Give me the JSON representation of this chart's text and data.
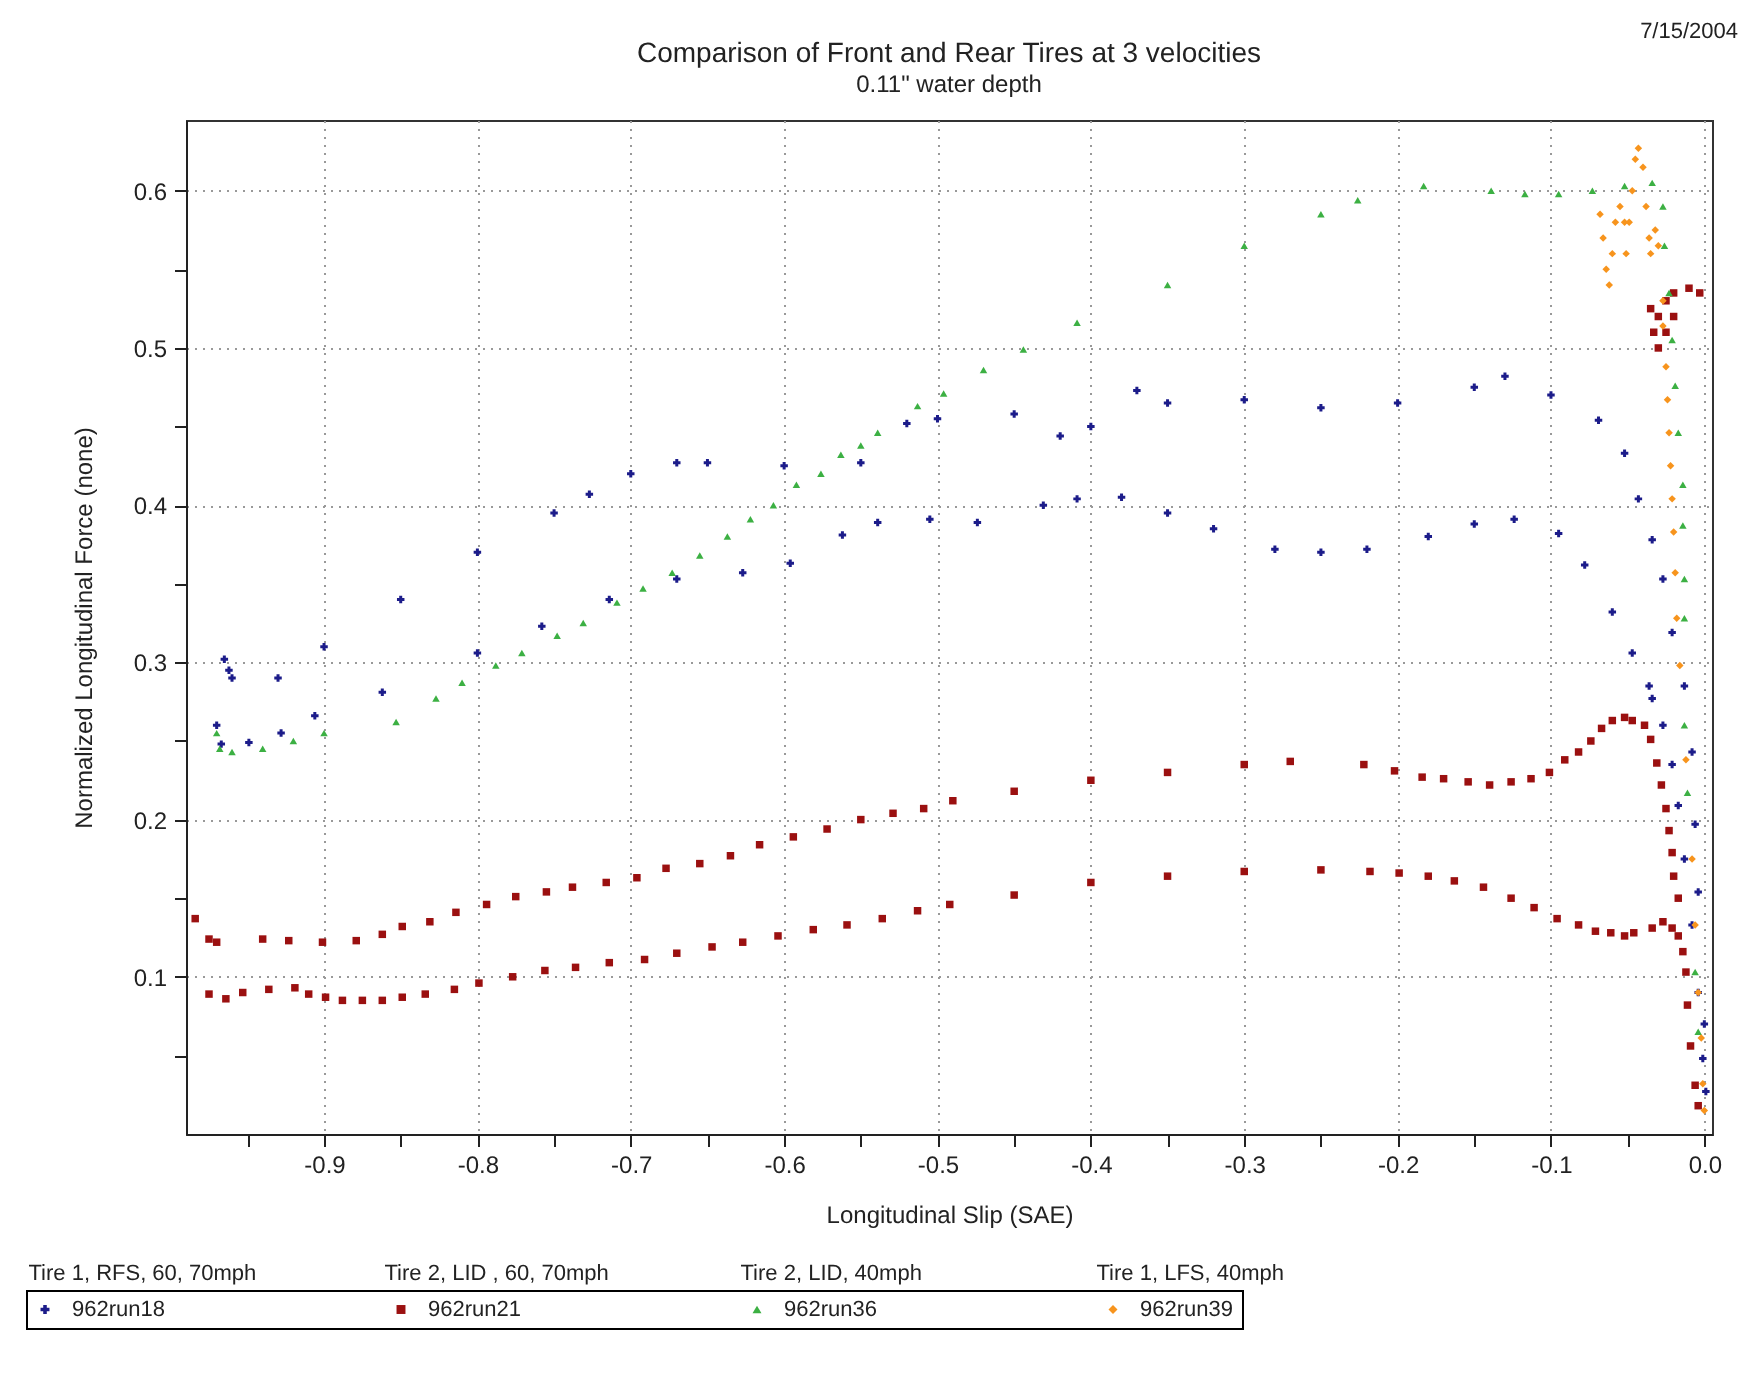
{
  "chart_data": {
    "type": "scatter",
    "title": "Comparison of Front and Rear Tires at 3 velocities",
    "subtitle": "0.11\" water depth",
    "xlabel": "Longitudinal Slip (SAE)",
    "ylabel": "Normalized Longitudinal Force (none)",
    "annotations": [
      "7/15/2004",
      "Tire 1, RFS, 60, 70mph",
      "Tire 2, LID , 60, 70mph",
      "Tire 2, LID, 40mph",
      "Tire 1, LFS, 40mph"
    ],
    "xlim": [
      -0.99,
      0.005
    ],
    "ylim": [
      0,
      0.645
    ],
    "xticks": [
      {
        "value": -0.95,
        "label": null
      },
      -0.9,
      {
        "value": -0.85,
        "label": null
      },
      -0.8,
      {
        "value": -0.75,
        "label": null
      },
      -0.7,
      {
        "value": -0.65,
        "label": null
      },
      -0.6,
      {
        "value": -0.55,
        "label": null
      },
      -0.5,
      {
        "value": -0.45,
        "label": null
      },
      -0.4,
      {
        "value": -0.35,
        "label": null
      },
      -0.3,
      {
        "value": -0.25,
        "label": null
      },
      -0.2,
      {
        "value": -0.15,
        "label": null
      },
      -0.1,
      {
        "value": -0.05,
        "label": null
      },
      {
        "value": 0,
        "label": "0.0"
      }
    ],
    "yticks": [
      {
        "value": 0.05,
        "label": null
      },
      0.1,
      {
        "value": 0.15,
        "label": null
      },
      0.2,
      {
        "value": 0.25,
        "label": null
      },
      0.3,
      {
        "value": 0.35,
        "label": null
      },
      0.4,
      {
        "value": 0.45,
        "label": null
      },
      0.5,
      {
        "value": 0.55,
        "label": null
      },
      0.6
    ],
    "grid": true,
    "legend": "bottom",
    "series": [
      {
        "name": "962run18",
        "color": "#1c1c8a",
        "marker": "cross",
        "x": [
          -0.965,
          -0.962,
          -0.96,
          -0.93,
          -0.9,
          -0.85,
          -0.8,
          -0.75,
          -0.727,
          -0.7,
          -0.67,
          -0.65,
          -0.6,
          -0.55,
          -0.52,
          -0.5,
          -0.45,
          -0.42,
          -0.4,
          -0.37,
          -0.35,
          -0.3,
          -0.25,
          -0.2,
          -0.15,
          -0.13,
          -0.1,
          -0.069,
          -0.052,
          -0.043,
          -0.034,
          -0.027,
          -0.021,
          -0.013,
          -0.008,
          -0.006,
          -0.004,
          0,
          0.001,
          -0.97,
          -0.967,
          -0.949,
          -0.928,
          -0.906,
          -0.862,
          -0.8,
          -0.758,
          -0.714,
          -0.67,
          -0.627,
          -0.596,
          -0.562,
          -0.539,
          -0.505,
          -0.474,
          -0.431,
          -0.409,
          -0.38,
          -0.35,
          -0.32,
          -0.28,
          -0.25,
          -0.22,
          -0.18,
          -0.15,
          -0.124,
          -0.095,
          -0.078,
          -0.06,
          -0.047,
          -0.036,
          -0.034,
          -0.027,
          -0.021,
          -0.017,
          -0.013,
          -0.008,
          -0.004,
          -0.001
        ],
        "values": [
          0.302,
          0.295,
          0.29,
          0.29,
          0.31,
          0.34,
          0.37,
          0.395,
          0.407,
          0.42,
          0.427,
          0.427,
          0.425,
          0.427,
          0.452,
          0.455,
          0.458,
          0.444,
          0.45,
          0.473,
          0.465,
          0.467,
          0.462,
          0.465,
          0.475,
          0.482,
          0.47,
          0.454,
          0.433,
          0.404,
          0.378,
          0.353,
          0.319,
          0.285,
          0.243,
          0.197,
          0.154,
          0.07,
          0.027,
          0.26,
          0.248,
          0.249,
          0.255,
          0.266,
          0.281,
          0.306,
          0.323,
          0.34,
          0.353,
          0.357,
          0.363,
          0.381,
          0.389,
          0.391,
          0.389,
          0.4,
          0.404,
          0.405,
          0.395,
          0.385,
          0.372,
          0.37,
          0.372,
          0.38,
          0.388,
          0.391,
          0.382,
          0.362,
          0.332,
          0.306,
          0.285,
          0.277,
          0.26,
          0.235,
          0.209,
          0.175,
          0.133,
          0.09,
          0.048
        ]
      },
      {
        "name": "962run21",
        "color": "#9b1010",
        "marker": "square",
        "x": [
          -0.984,
          -0.975,
          -0.97,
          -0.94,
          -0.923,
          -0.901,
          -0.879,
          -0.862,
          -0.849,
          -0.831,
          -0.814,
          -0.794,
          -0.775,
          -0.755,
          -0.738,
          -0.716,
          -0.696,
          -0.677,
          -0.655,
          -0.635,
          -0.616,
          -0.594,
          -0.572,
          -0.55,
          -0.529,
          -0.509,
          -0.49,
          -0.45,
          -0.4,
          -0.35,
          -0.3,
          -0.27,
          -0.222,
          -0.202,
          -0.184,
          -0.17,
          -0.154,
          -0.14,
          -0.126,
          -0.113,
          -0.101,
          -0.091,
          -0.082,
          -0.074,
          -0.067,
          -0.06,
          -0.052,
          -0.047,
          -0.039,
          -0.035,
          -0.031,
          -0.028,
          -0.025,
          -0.023,
          -0.021,
          -0.02,
          -0.017,
          -0.975,
          -0.964,
          -0.953,
          -0.936,
          -0.919,
          -0.91,
          -0.899,
          -0.888,
          -0.875,
          -0.862,
          -0.849,
          -0.834,
          -0.815,
          -0.799,
          -0.777,
          -0.756,
          -0.736,
          -0.714,
          -0.691,
          -0.67,
          -0.647,
          -0.627,
          -0.604,
          -0.581,
          -0.559,
          -0.536,
          -0.513,
          -0.492,
          -0.45,
          -0.4,
          -0.35,
          -0.3,
          -0.25,
          -0.218,
          -0.199,
          -0.18,
          -0.163,
          -0.144,
          -0.126,
          -0.111,
          -0.096,
          -0.082,
          -0.071,
          -0.061,
          -0.052,
          -0.046,
          -0.034,
          -0.027,
          -0.021,
          -0.017,
          -0.014,
          -0.012,
          -0.011,
          -0.009,
          -0.006,
          -0.004,
          -0.035,
          -0.033,
          -0.03,
          -0.025,
          -0.02,
          -0.025,
          -0.02,
          -0.01,
          -0.003,
          -0.03
        ],
        "values": [
          0.137,
          0.124,
          0.122,
          0.124,
          0.123,
          0.122,
          0.123,
          0.127,
          0.132,
          0.135,
          0.141,
          0.146,
          0.151,
          0.154,
          0.157,
          0.16,
          0.163,
          0.169,
          0.172,
          0.177,
          0.184,
          0.189,
          0.194,
          0.2,
          0.204,
          0.207,
          0.212,
          0.218,
          0.225,
          0.23,
          0.235,
          0.237,
          0.235,
          0.231,
          0.227,
          0.226,
          0.224,
          0.222,
          0.224,
          0.226,
          0.23,
          0.238,
          0.243,
          0.25,
          0.258,
          0.263,
          0.265,
          0.263,
          0.26,
          0.251,
          0.236,
          0.222,
          0.207,
          0.193,
          0.179,
          0.164,
          0.15,
          0.089,
          0.086,
          0.09,
          0.092,
          0.093,
          0.089,
          0.087,
          0.085,
          0.085,
          0.085,
          0.087,
          0.089,
          0.092,
          0.096,
          0.1,
          0.104,
          0.106,
          0.109,
          0.111,
          0.115,
          0.119,
          0.122,
          0.126,
          0.13,
          0.133,
          0.137,
          0.142,
          0.146,
          0.152,
          0.16,
          0.164,
          0.167,
          0.168,
          0.167,
          0.166,
          0.164,
          0.161,
          0.157,
          0.15,
          0.144,
          0.137,
          0.133,
          0.129,
          0.128,
          0.126,
          0.128,
          0.131,
          0.135,
          0.131,
          0.126,
          0.116,
          0.103,
          0.082,
          0.056,
          0.031,
          0.018,
          0.525,
          0.51,
          0.5,
          0.51,
          0.52,
          0.53,
          0.535,
          0.538,
          0.535,
          0.52
        ]
      },
      {
        "name": "962run36",
        "color": "#3cb043",
        "marker": "triangle",
        "x": [
          -0.97,
          -0.968,
          -0.96,
          -0.94,
          -0.92,
          -0.9,
          -0.853,
          -0.827,
          -0.81,
          -0.788,
          -0.771,
          -0.748,
          -0.731,
          -0.709,
          -0.692,
          -0.673,
          -0.655,
          -0.637,
          -0.622,
          -0.607,
          -0.592,
          -0.576,
          -0.563,
          -0.55,
          -0.539,
          -0.513,
          -0.496,
          -0.47,
          -0.444,
          -0.409,
          -0.35,
          -0.3,
          -0.25,
          -0.226,
          -0.183,
          -0.139,
          -0.117,
          -0.095,
          -0.073,
          -0.052,
          -0.034,
          -0.027,
          -0.026,
          -0.023,
          -0.021,
          -0.019,
          -0.017,
          -0.014,
          -0.014,
          -0.013,
          -0.013,
          -0.013,
          -0.011,
          -0.006,
          -0.004
        ],
        "values": [
          0.255,
          0.245,
          0.243,
          0.245,
          0.25,
          0.255,
          0.262,
          0.277,
          0.287,
          0.298,
          0.306,
          0.317,
          0.325,
          0.338,
          0.347,
          0.357,
          0.368,
          0.38,
          0.391,
          0.4,
          0.413,
          0.42,
          0.432,
          0.438,
          0.446,
          0.463,
          0.471,
          0.486,
          0.499,
          0.516,
          0.54,
          0.565,
          0.585,
          0.594,
          0.603,
          0.6,
          0.598,
          0.598,
          0.6,
          0.603,
          0.605,
          0.59,
          0.565,
          0.535,
          0.505,
          0.476,
          0.446,
          0.413,
          0.387,
          0.353,
          0.328,
          0.26,
          0.217,
          0.103,
          0.065
        ]
      },
      {
        "name": "962run39",
        "color": "#f7941d",
        "marker": "diamond",
        "x": [
          -0.068,
          -0.066,
          -0.064,
          -0.062,
          -0.06,
          -0.058,
          -0.055,
          -0.052,
          -0.051,
          -0.049,
          -0.047,
          -0.045,
          -0.043,
          -0.04,
          -0.038,
          -0.036,
          -0.035,
          -0.032,
          -0.03,
          -0.027,
          -0.027,
          -0.025,
          -0.024,
          -0.023,
          -0.022,
          -0.021,
          -0.02,
          -0.019,
          -0.018,
          -0.016,
          -0.012,
          -0.008,
          -0.006,
          -0.004,
          -0.002,
          -0.001,
          0
        ],
        "values": [
          0.585,
          0.57,
          0.55,
          0.54,
          0.56,
          0.58,
          0.59,
          0.58,
          0.56,
          0.58,
          0.6,
          0.62,
          0.627,
          0.615,
          0.59,
          0.57,
          0.56,
          0.575,
          0.565,
          0.53,
          0.514,
          0.488,
          0.467,
          0.446,
          0.425,
          0.404,
          0.383,
          0.357,
          0.328,
          0.298,
          0.238,
          0.175,
          0.133,
          0.09,
          0.061,
          0.032,
          0.015
        ]
      }
    ]
  }
}
